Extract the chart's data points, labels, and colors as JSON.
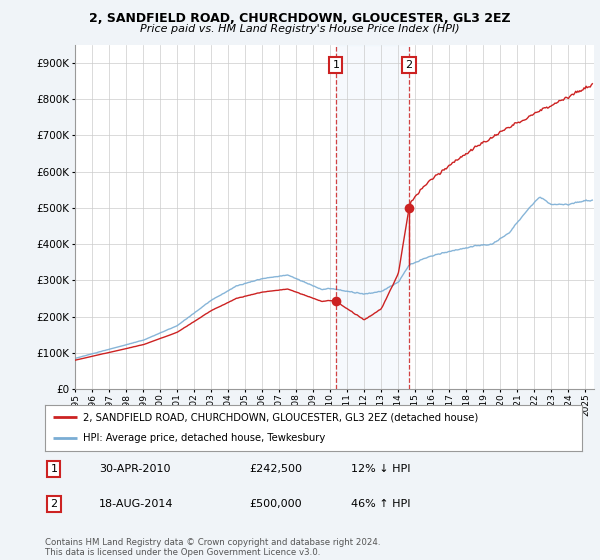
{
  "title": "2, SANDFIELD ROAD, CHURCHDOWN, GLOUCESTER, GL3 2EZ",
  "subtitle": "Price paid vs. HM Land Registry's House Price Index (HPI)",
  "hpi_label": "HPI: Average price, detached house, Tewkesbury",
  "property_label": "2, SANDFIELD ROAD, CHURCHDOWN, GLOUCESTER, GL3 2EZ (detached house)",
  "transaction1": {
    "date": "30-APR-2010",
    "price": "£242,500",
    "hpi_diff": "12% ↓ HPI"
  },
  "transaction2": {
    "date": "18-AUG-2014",
    "price": "£500,000",
    "hpi_diff": "46% ↑ HPI"
  },
  "marker1_year": 2010.33,
  "marker2_year": 2014.63,
  "marker1_price": 242500,
  "marker2_price": 500000,
  "ylim": [
    0,
    950000
  ],
  "xlim_start": 1995,
  "xlim_end": 2025.5,
  "hpi_color": "#7aadd4",
  "property_color": "#cc2222",
  "marker_color": "#cc2222",
  "footnote": "Contains HM Land Registry data © Crown copyright and database right 2024.\nThis data is licensed under the Open Government Licence v3.0.",
  "background_color": "#f0f4f8",
  "plot_bg": "#ffffff",
  "grid_color": "#cccccc"
}
